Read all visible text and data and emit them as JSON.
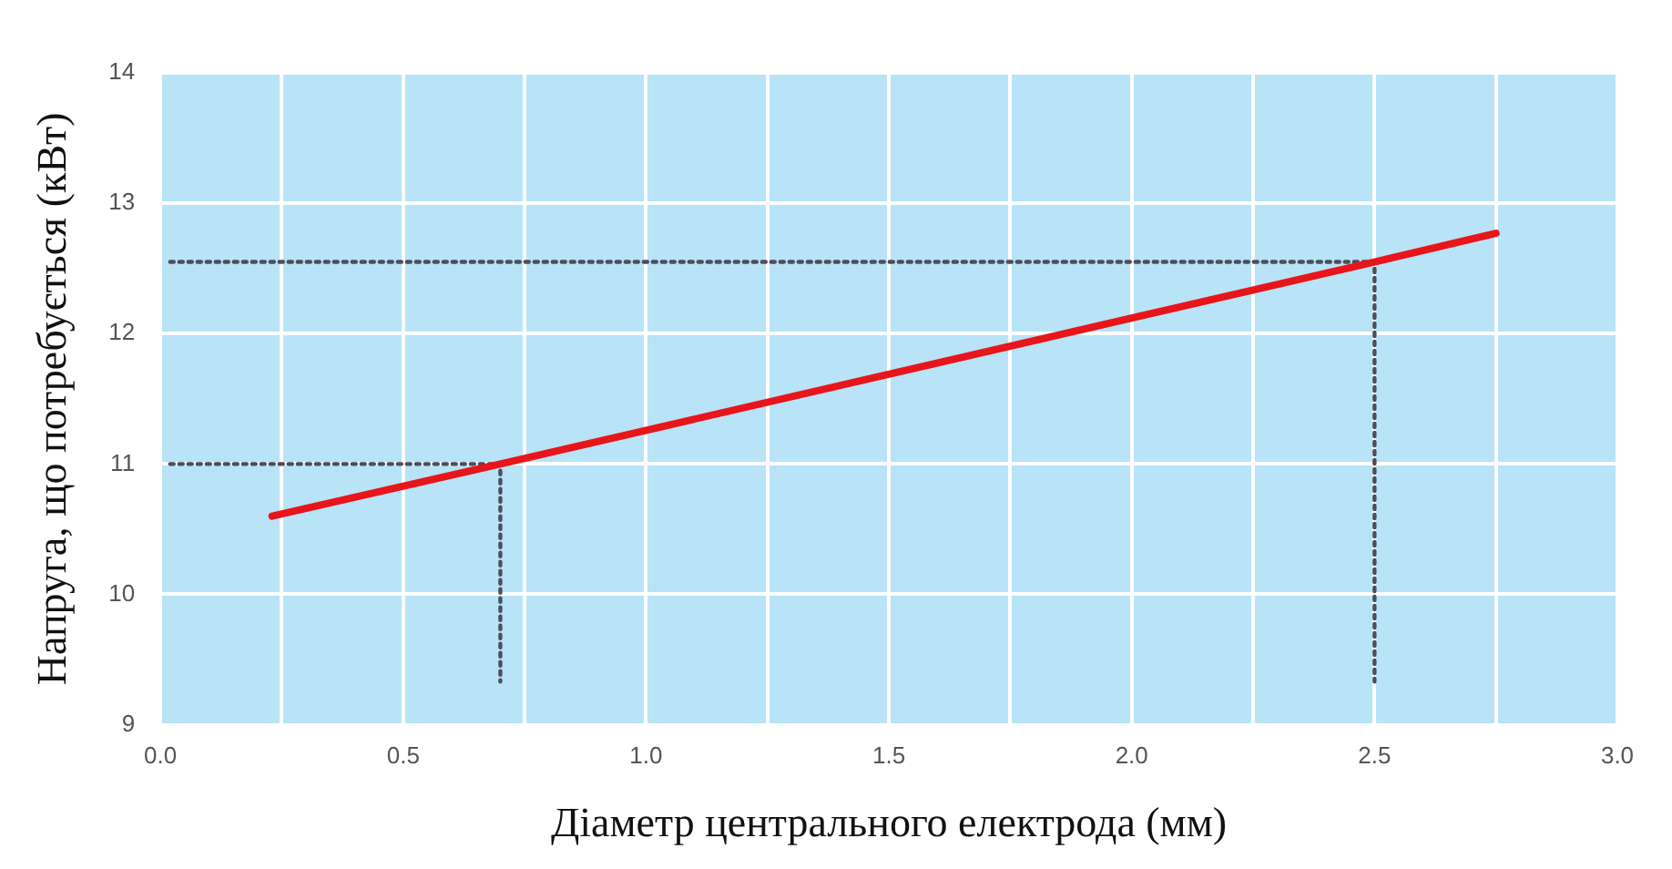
{
  "chart_data": {
    "type": "line",
    "xlabel": "Діаметр центрального електрода (мм)",
    "ylabel": "Напруга, що потребується (кВт)",
    "xlim": [
      0,
      3
    ],
    "ylim": [
      9,
      14
    ],
    "xticks": [
      {
        "value": 0,
        "label": "0.0"
      },
      {
        "value": 0.25,
        "label": null
      },
      {
        "value": 0.5,
        "label": "0.5"
      },
      {
        "value": 0.75,
        "label": null
      },
      {
        "value": 1,
        "label": "1.0"
      },
      {
        "value": 1.25,
        "label": null
      },
      {
        "value": 1.5,
        "label": "1.5"
      },
      {
        "value": 1.75,
        "label": null
      },
      {
        "value": 2,
        "label": "2.0"
      },
      {
        "value": 2.25,
        "label": null
      },
      {
        "value": 2.5,
        "label": "2.5"
      },
      {
        "value": 2.75,
        "label": null
      },
      {
        "value": 3,
        "label": "3.0"
      }
    ],
    "yticks": [
      9,
      10,
      11,
      12,
      13,
      14
    ],
    "grid": true,
    "legend": false,
    "marker": "none",
    "series": [
      {
        "color": "#e8151b",
        "x": [
          0.23,
          0.7,
          2.5,
          2.75
        ],
        "values": [
          10.6,
          11.0,
          12.55,
          12.77
        ],
        "line_style": "solid"
      },
      {
        "color": "#4a4f5a",
        "x": [
          0.02,
          0.7,
          0.7
        ],
        "values": [
          11.0,
          11.0,
          9.33
        ],
        "line_style": "dotted"
      },
      {
        "color": "#4a4f5a",
        "x": [
          0.02,
          2.5,
          2.5
        ],
        "values": [
          12.55,
          12.55,
          9.33
        ],
        "line_style": "dotted"
      }
    ]
  }
}
